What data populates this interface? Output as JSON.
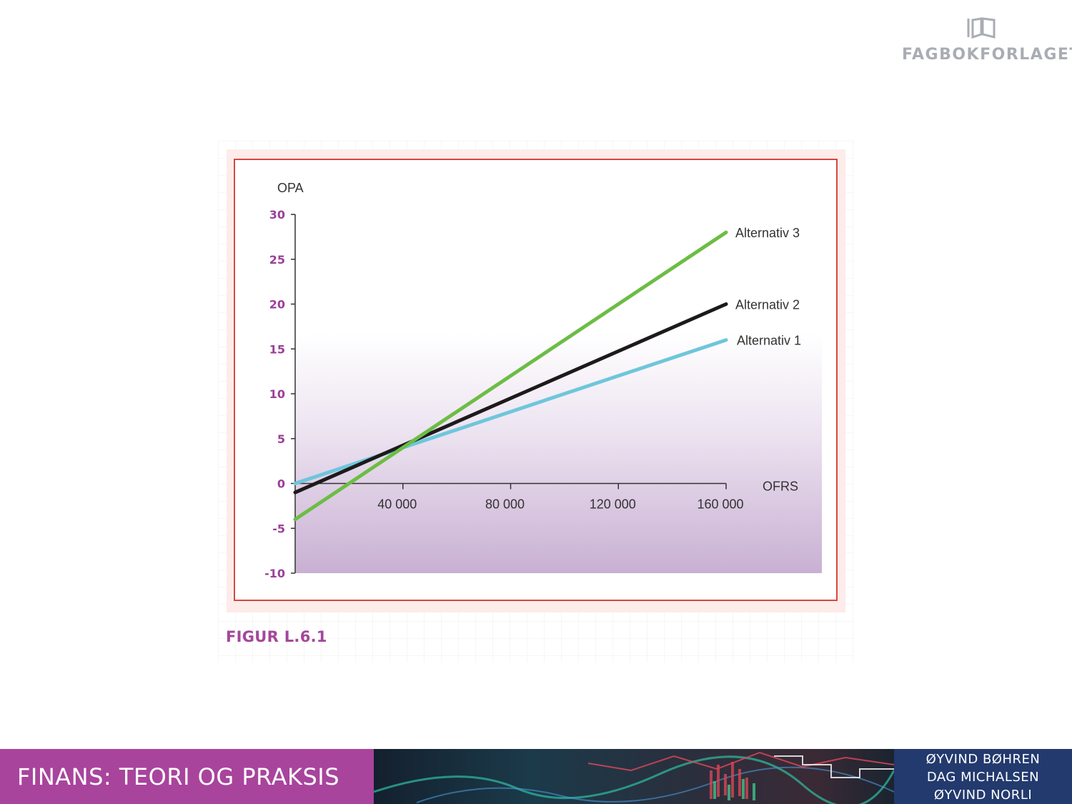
{
  "header": {
    "publisher_name": "FAGBOKFORLAGET",
    "logo_icon": "book-logo-icon"
  },
  "figure": {
    "caption": "FIGUR L.6.1"
  },
  "chart_data": {
    "type": "line",
    "ylabel": "OPA",
    "xlabel": "OFRS",
    "xlim": [
      0,
      160000
    ],
    "ylim": [
      -10,
      30
    ],
    "x_ticks": [
      40000,
      80000,
      120000,
      160000
    ],
    "x_tick_labels": [
      "40 000",
      "80 000",
      "120 000",
      "160 000"
    ],
    "y_ticks": [
      30,
      25,
      20,
      15,
      10,
      5,
      0,
      -5,
      -10
    ],
    "y_tick_labels": [
      "30",
      "25",
      "20",
      "15",
      "10",
      "5",
      "0",
      "-5",
      "-10"
    ],
    "series": [
      {
        "name": "Alternativ 1",
        "color": "#6ec6dc",
        "x": [
          0,
          160000
        ],
        "y": [
          0,
          16
        ]
      },
      {
        "name": "Alternativ 2",
        "color": "#1d1a1b",
        "x": [
          0,
          160000
        ],
        "y": [
          -1,
          20
        ]
      },
      {
        "name": "Alternativ 3",
        "color": "#6cbd45",
        "x": [
          0,
          160000
        ],
        "y": [
          -4,
          28
        ]
      }
    ],
    "tick_label_color": "#9b3f97",
    "frame_color": "#d9473f"
  },
  "footer": {
    "book_title": "FINANS: TEORI OG PRAKSIS",
    "authors": [
      "ØYVIND BØHREN",
      "DAG MICHALSEN",
      "ØYVIND NORLI"
    ],
    "colors": {
      "title_block": "#a8449c",
      "author_block": "#233a6e"
    }
  }
}
